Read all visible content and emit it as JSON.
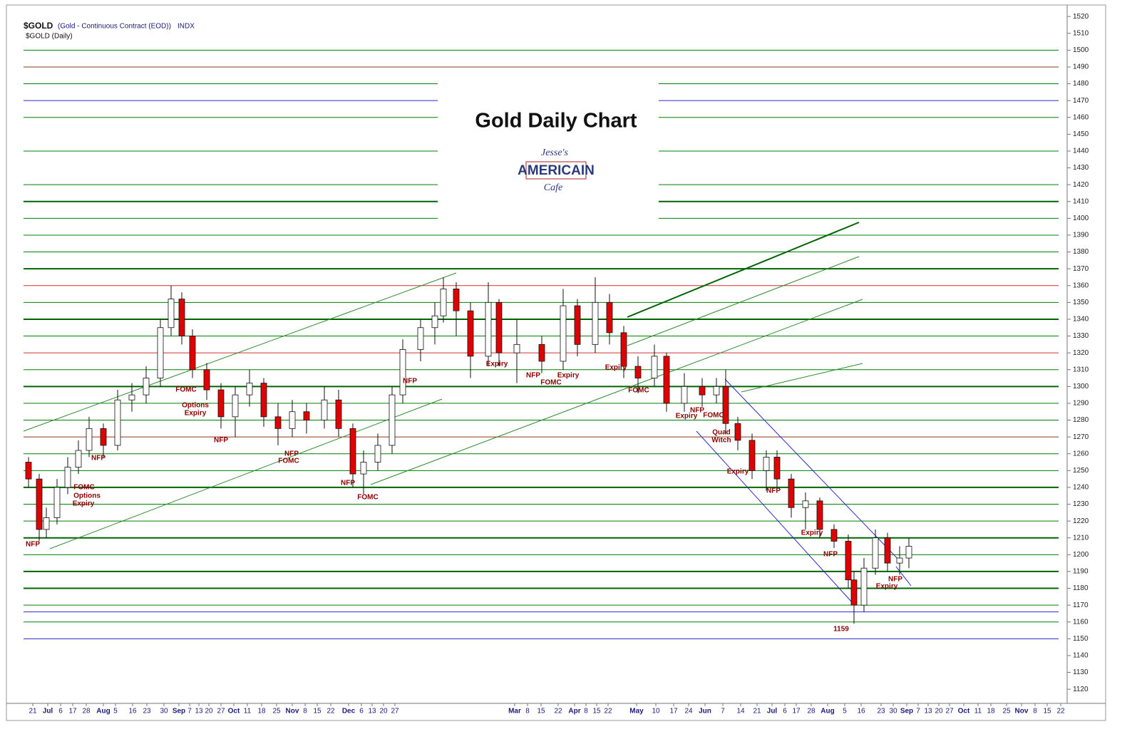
{
  "chart_data": {
    "type": "candlestick",
    "title": "Gold Daily Chart",
    "header": {
      "symbol": "$GOLD",
      "description": "(Gold - Continuous Contract (EOD))",
      "exchange": "INDX",
      "subtitle": "$GOLD (Daily)"
    },
    "logo": {
      "top": "Jesse's",
      "middle": "AMERICAIN",
      "bottom": "Cafe"
    },
    "up_color": "#ffffff",
    "down_color": "#e00000",
    "ylim": [
      1112,
      1526
    ],
    "yticks": [
      1120,
      1130,
      1140,
      1150,
      1160,
      1170,
      1180,
      1190,
      1200,
      1210,
      1220,
      1230,
      1240,
      1250,
      1260,
      1270,
      1280,
      1290,
      1300,
      1310,
      1320,
      1330,
      1340,
      1350,
      1360,
      1370,
      1380,
      1390,
      1400,
      1410,
      1420,
      1430,
      1440,
      1450,
      1460,
      1470,
      1480,
      1490,
      1500,
      1510,
      1520
    ],
    "xlim": [
      0,
      1452
    ],
    "xticks": [
      {
        "value": 13,
        "label": "21"
      },
      {
        "value": 34,
        "label": "Jul"
      },
      {
        "value": 52,
        "label": "6"
      },
      {
        "value": 69,
        "label": "17"
      },
      {
        "value": 88,
        "label": "28"
      },
      {
        "value": 112,
        "label": "Aug"
      },
      {
        "value": 129,
        "label": "5"
      },
      {
        "value": 153,
        "label": "16"
      },
      {
        "value": 173,
        "label": "23"
      },
      {
        "value": 197,
        "label": "30"
      },
      {
        "value": 218,
        "label": "Sep"
      },
      {
        "value": 233,
        "label": "7"
      },
      {
        "value": 246,
        "label": "13"
      },
      {
        "value": 260,
        "label": "20"
      },
      {
        "value": 277,
        "label": "27"
      },
      {
        "value": 295,
        "label": "Oct"
      },
      {
        "value": 314,
        "label": "11"
      },
      {
        "value": 334,
        "label": "18"
      },
      {
        "value": 355,
        "label": "25"
      },
      {
        "value": 377,
        "label": "Nov"
      },
      {
        "value": 395,
        "label": "8"
      },
      {
        "value": 412,
        "label": "15"
      },
      {
        "value": 431,
        "label": "22"
      },
      {
        "value": 456,
        "label": "Dec"
      },
      {
        "value": 474,
        "label": "6"
      },
      {
        "value": 489,
        "label": "13"
      },
      {
        "value": 505,
        "label": "20"
      },
      {
        "value": 521,
        "label": "27"
      },
      {
        "value": 689,
        "label": "Mar"
      },
      {
        "value": 707,
        "label": "8"
      },
      {
        "value": 726,
        "label": "15"
      },
      {
        "value": 750,
        "label": "22"
      },
      {
        "value": 773,
        "label": "Apr"
      },
      {
        "value": 789,
        "label": "8"
      },
      {
        "value": 804,
        "label": "15"
      },
      {
        "value": 820,
        "label": "22"
      },
      {
        "value": 860,
        "label": "May"
      },
      {
        "value": 887,
        "label": "10"
      },
      {
        "value": 912,
        "label": "17"
      },
      {
        "value": 933,
        "label": "24"
      },
      {
        "value": 956,
        "label": "Jun"
      },
      {
        "value": 981,
        "label": "7"
      },
      {
        "value": 1006,
        "label": "14"
      },
      {
        "value": 1029,
        "label": "21"
      },
      {
        "value": 1050,
        "label": "Jul"
      },
      {
        "value": 1068,
        "label": "6"
      },
      {
        "value": 1084,
        "label": "17"
      },
      {
        "value": 1105,
        "label": "28"
      },
      {
        "value": 1128,
        "label": "Aug"
      },
      {
        "value": 1152,
        "label": "5"
      },
      {
        "value": 1175,
        "label": "16"
      },
      {
        "value": 1203,
        "label": "23"
      },
      {
        "value": 1220,
        "label": "30"
      },
      {
        "value": 1239,
        "label": "Sep"
      },
      {
        "value": 1255,
        "label": "7"
      },
      {
        "value": 1269,
        "label": "13"
      },
      {
        "value": 1284,
        "label": "20"
      },
      {
        "value": 1299,
        "label": "27"
      },
      {
        "value": 1319,
        "label": "Oct"
      },
      {
        "value": 1339,
        "label": "11"
      },
      {
        "value": 1357,
        "label": "18"
      },
      {
        "value": 1379,
        "label": "25"
      },
      {
        "value": 1400,
        "label": "Nov"
      },
      {
        "value": 1419,
        "label": "8"
      },
      {
        "value": 1436,
        "label": "15"
      },
      {
        "value": 1455,
        "label": "22"
      }
    ],
    "levels": [
      {
        "value": 1500,
        "color": "#008000"
      },
      {
        "value": 1490,
        "color": "#8b3a1a"
      },
      {
        "value": 1480,
        "color": "#008000"
      },
      {
        "value": 1470,
        "color": "#2a2ad0"
      },
      {
        "value": 1460,
        "color": "#008000"
      },
      {
        "value": 1440,
        "color": "#008000"
      },
      {
        "value": 1420,
        "color": "#008000"
      },
      {
        "value": 1410,
        "color": "#006400"
      },
      {
        "value": 1400,
        "color": "#008000"
      },
      {
        "value": 1390,
        "color": "#008000"
      },
      {
        "value": 1380,
        "color": "#008000"
      },
      {
        "value": 1370,
        "color": "#006400"
      },
      {
        "value": 1360,
        "color": "#d03030"
      },
      {
        "value": 1350,
        "color": "#008000"
      },
      {
        "value": 1340,
        "color": "#006400"
      },
      {
        "value": 1330,
        "color": "#008000"
      },
      {
        "value": 1320,
        "color": "#d03030"
      },
      {
        "value": 1310,
        "color": "#008000"
      },
      {
        "value": 1300,
        "color": "#006400"
      },
      {
        "value": 1290,
        "color": "#008000"
      },
      {
        "value": 1280,
        "color": "#008000"
      },
      {
        "value": 1270,
        "color": "#8b3a1a"
      },
      {
        "value": 1260,
        "color": "#008000"
      },
      {
        "value": 1250,
        "color": "#008000"
      },
      {
        "value": 1240,
        "color": "#006400"
      },
      {
        "value": 1230,
        "color": "#008000"
      },
      {
        "value": 1220,
        "color": "#008000"
      },
      {
        "value": 1210,
        "color": "#006400"
      },
      {
        "value": 1200,
        "color": "#008000"
      },
      {
        "value": 1190,
        "color": "#006400"
      },
      {
        "value": 1180,
        "color": "#006400"
      },
      {
        "value": 1170,
        "color": "#008000"
      },
      {
        "value": 1166,
        "color": "#2a2ad0"
      },
      {
        "value": 1160,
        "color": "#008000"
      },
      {
        "value": 1150,
        "color": "#2a2ad0"
      }
    ],
    "x": [
      7,
      22,
      32,
      47,
      62,
      77,
      92,
      112,
      132,
      152,
      172,
      192,
      207,
      222,
      237,
      257,
      277,
      297,
      317,
      337,
      357,
      377,
      397,
      422,
      442,
      462,
      477,
      497,
      517,
      532,
      557,
      577,
      589,
      607,
      627,
      652,
      667,
      692,
      727,
      757,
      777,
      802,
      822,
      842,
      862,
      885,
      902,
      927,
      952,
      972,
      985,
      1002,
      1022,
      1042,
      1057,
      1077,
      1097,
      1117,
      1137,
      1157,
      1165,
      1179,
      1195,
      1212,
      1229,
      1242
    ],
    "open": [
      1255,
      1245,
      1215,
      1222,
      1240,
      1252,
      1262,
      1275,
      1265,
      1292,
      1295,
      1305,
      1335,
      1352,
      1330,
      1310,
      1298,
      1282,
      1295,
      1302,
      1282,
      1275,
      1285,
      1280,
      1292,
      1275,
      1248,
      1255,
      1265,
      1295,
      1322,
      1335,
      1342,
      1358,
      1345,
      1318,
      1350,
      1320,
      1325,
      1315,
      1348,
      1325,
      1350,
      1332,
      1312,
      1305,
      1318,
      1290,
      1300,
      1295,
      1300,
      1278,
      1268,
      1250,
      1258,
      1245,
      1228,
      1232,
      1215,
      1208,
      1185,
      1170,
      1192,
      1210,
      1195,
      1198
    ],
    "high": [
      1258,
      1248,
      1228,
      1245,
      1258,
      1268,
      1282,
      1278,
      1298,
      1302,
      1312,
      1340,
      1360,
      1356,
      1334,
      1314,
      1302,
      1300,
      1310,
      1305,
      1290,
      1292,
      1290,
      1300,
      1298,
      1278,
      1262,
      1272,
      1300,
      1328,
      1340,
      1350,
      1365,
      1362,
      1350,
      1362,
      1352,
      1340,
      1330,
      1358,
      1352,
      1365,
      1355,
      1336,
      1318,
      1325,
      1320,
      1308,
      1305,
      1305,
      1310,
      1282,
      1272,
      1262,
      1262,
      1248,
      1237,
      1234,
      1218,
      1212,
      1190,
      1198,
      1215,
      1213,
      1205,
      1210
    ],
    "low": [
      1240,
      1208,
      1210,
      1218,
      1236,
      1248,
      1258,
      1258,
      1262,
      1285,
      1290,
      1300,
      1330,
      1325,
      1305,
      1292,
      1275,
      1270,
      1288,
      1276,
      1265,
      1270,
      1272,
      1275,
      1270,
      1240,
      1236,
      1250,
      1260,
      1290,
      1315,
      1325,
      1338,
      1330,
      1305,
      1312,
      1312,
      1302,
      1308,
      1310,
      1318,
      1320,
      1325,
      1305,
      1296,
      1300,
      1285,
      1285,
      1288,
      1290,
      1272,
      1262,
      1245,
      1238,
      1240,
      1222,
      1215,
      1210,
      1204,
      1180,
      1159,
      1166,
      1188,
      1190,
      1188,
      1192
    ],
    "close": [
      1245,
      1215,
      1222,
      1240,
      1252,
      1262,
      1275,
      1265,
      1292,
      1295,
      1305,
      1335,
      1352,
      1330,
      1310,
      1298,
      1282,
      1295,
      1302,
      1282,
      1275,
      1285,
      1280,
      1292,
      1275,
      1248,
      1255,
      1265,
      1295,
      1322,
      1335,
      1342,
      1358,
      1345,
      1318,
      1350,
      1320,
      1325,
      1315,
      1348,
      1325,
      1350,
      1332,
      1312,
      1305,
      1318,
      1290,
      1300,
      1295,
      1300,
      1278,
      1268,
      1250,
      1258,
      1245,
      1228,
      1232,
      1215,
      1208,
      1185,
      1170,
      1192,
      1210,
      1195,
      1198,
      1205
    ],
    "annotations": [
      "NFP",
      "FOMC",
      "Options",
      "Expiry",
      "NFP",
      "FOMC",
      "Options",
      "Expiry",
      "NFP",
      "NFP",
      "FOMC",
      "NFP",
      "FOMC",
      "NFP",
      "Expiry",
      "NFP",
      "FOMC",
      "Expiry",
      "Expiry",
      "FOMC",
      "Expiry",
      "NFP",
      "FOMC",
      "Quad",
      "Witch",
      "Expiry",
      "NFP",
      "Expiry",
      "NFP",
      "1159",
      "NFP",
      "Expiry"
    ]
  }
}
